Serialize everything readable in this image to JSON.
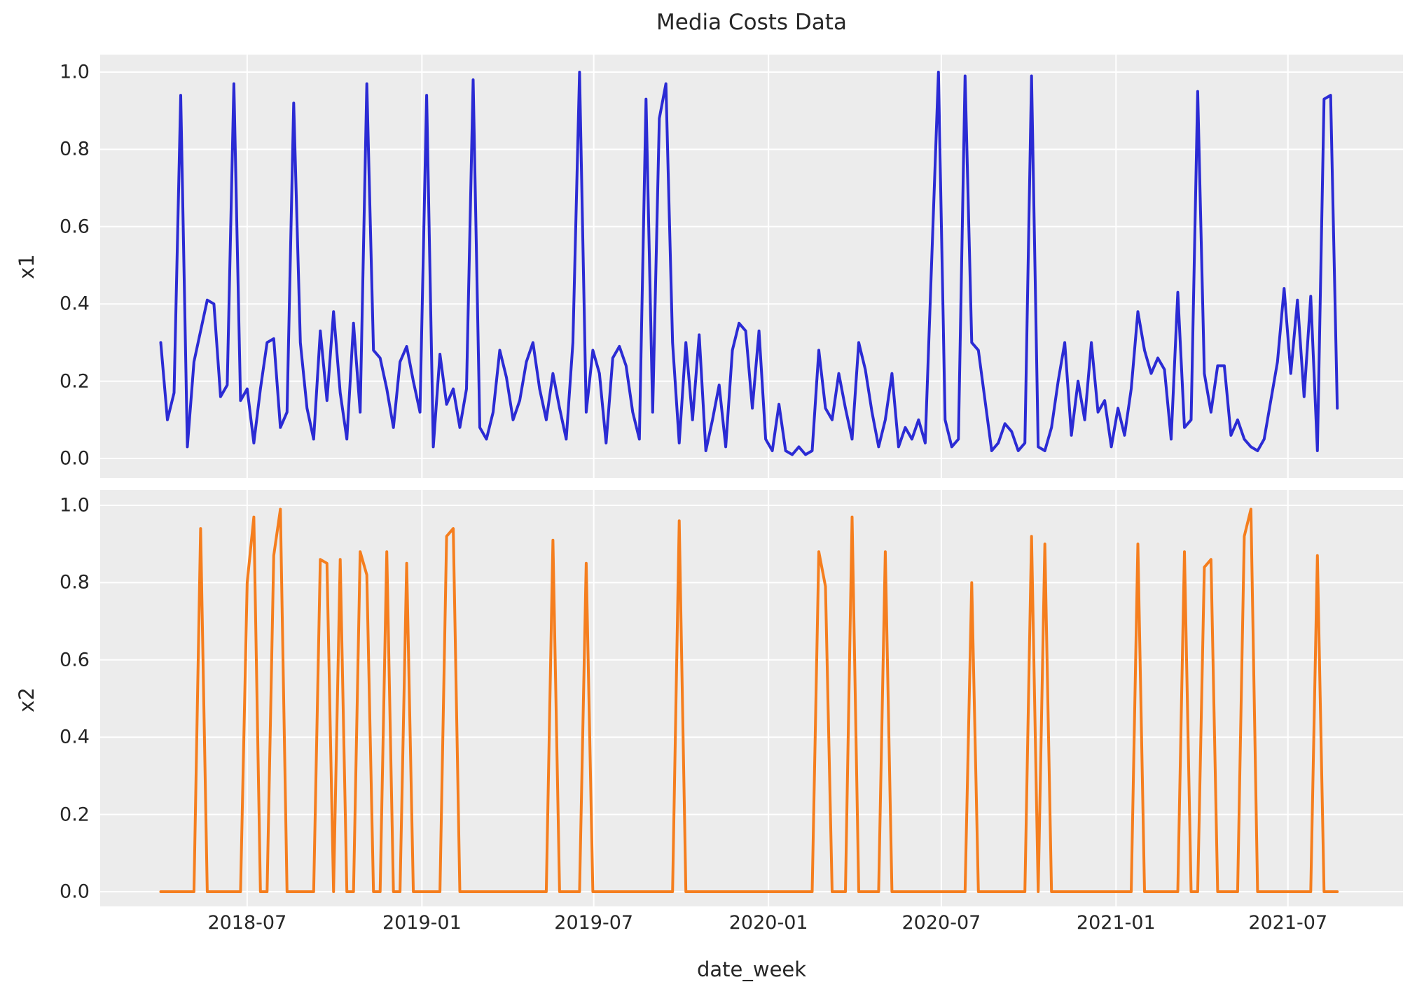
{
  "title": "Media Costs Data",
  "xlabel": "date_week",
  "subplots": [
    {
      "ylabel": "x1"
    },
    {
      "ylabel": "x2"
    }
  ],
  "y_ticks": [
    "1.0",
    "0.8",
    "0.6",
    "0.4",
    "0.2",
    "0.0"
  ],
  "x_ticks": [
    {
      "label": "2018-07",
      "index": 13.0
    },
    {
      "label": "2019-01",
      "index": 39.29
    },
    {
      "label": "2019-07",
      "index": 65.14
    },
    {
      "label": "2020-01",
      "index": 91.43
    },
    {
      "label": "2020-07",
      "index": 117.43
    },
    {
      "label": "2021-01",
      "index": 143.71
    },
    {
      "label": "2021-07",
      "index": 169.57
    }
  ],
  "colors": {
    "x1_line": "#2b2bd4",
    "x2_line": "#f57e1e",
    "plot_background": "#ececec",
    "gridline": "#ffffff",
    "text": "#262626"
  },
  "chart_data": {
    "type": "line",
    "title": "Media Costs Data",
    "xlabel": "date_week",
    "x_start_date": "2018-04-01",
    "x_freq": "weekly",
    "n_points": 178,
    "ylim": [
      0.0,
      1.0
    ],
    "grid": true,
    "legend": false,
    "x_tick_labels": [
      "2018-07",
      "2019-01",
      "2019-07",
      "2020-01",
      "2020-07",
      "2021-01",
      "2021-07"
    ],
    "series": [
      {
        "name": "x1",
        "color": "#2b2bd4",
        "values": [
          0.3,
          0.1,
          0.17,
          0.94,
          0.03,
          0.25,
          0.33,
          0.41,
          0.4,
          0.16,
          0.19,
          0.97,
          0.15,
          0.18,
          0.04,
          0.18,
          0.3,
          0.31,
          0.08,
          0.12,
          0.92,
          0.3,
          0.13,
          0.05,
          0.33,
          0.15,
          0.38,
          0.17,
          0.05,
          0.35,
          0.12,
          0.97,
          0.28,
          0.26,
          0.18,
          0.08,
          0.25,
          0.29,
          0.2,
          0.12,
          0.94,
          0.03,
          0.27,
          0.14,
          0.18,
          0.08,
          0.18,
          0.98,
          0.08,
          0.05,
          0.12,
          0.28,
          0.21,
          0.1,
          0.15,
          0.25,
          0.3,
          0.18,
          0.1,
          0.22,
          0.13,
          0.05,
          0.3,
          1.0,
          0.12,
          0.28,
          0.22,
          0.04,
          0.26,
          0.29,
          0.24,
          0.12,
          0.05,
          0.93,
          0.12,
          0.88,
          0.97,
          0.3,
          0.04,
          0.3,
          0.1,
          0.32,
          0.02,
          0.1,
          0.19,
          0.03,
          0.28,
          0.35,
          0.33,
          0.13,
          0.33,
          0.05,
          0.02,
          0.14,
          0.02,
          0.01,
          0.03,
          0.01,
          0.02,
          0.28,
          0.13,
          0.1,
          0.22,
          0.13,
          0.05,
          0.3,
          0.23,
          0.12,
          0.03,
          0.1,
          0.22,
          0.03,
          0.08,
          0.05,
          0.1,
          0.04,
          0.52,
          1.0,
          0.1,
          0.03,
          0.05,
          0.99,
          0.3,
          0.28,
          0.15,
          0.02,
          0.04,
          0.09,
          0.07,
          0.02,
          0.04,
          0.99,
          0.03,
          0.02,
          0.08,
          0.2,
          0.3,
          0.06,
          0.2,
          0.1,
          0.3,
          0.12,
          0.15,
          0.03,
          0.13,
          0.06,
          0.18,
          0.38,
          0.28,
          0.22,
          0.26,
          0.23,
          0.05,
          0.43,
          0.08,
          0.1,
          0.95,
          0.22,
          0.12,
          0.24,
          0.24,
          0.06,
          0.1,
          0.05,
          0.03,
          0.02,
          0.05,
          0.15,
          0.25,
          0.44,
          0.22,
          0.41,
          0.16,
          0.42,
          0.02,
          0.93,
          0.94,
          0.13
        ]
      },
      {
        "name": "x2",
        "color": "#f57e1e",
        "values": [
          0,
          0,
          0,
          0,
          0,
          0,
          0.94,
          0,
          0,
          0,
          0,
          0,
          0,
          0.8,
          0.97,
          0,
          0,
          0.87,
          0.99,
          0,
          0,
          0,
          0,
          0,
          0.86,
          0.85,
          0,
          0.86,
          0,
          0,
          0.88,
          0.82,
          0,
          0,
          0.88,
          0,
          0,
          0.85,
          0,
          0,
          0,
          0,
          0,
          0.92,
          0.94,
          0,
          0,
          0,
          0,
          0,
          0,
          0,
          0,
          0,
          0,
          0,
          0,
          0,
          0,
          0.91,
          0,
          0,
          0,
          0,
          0.85,
          0,
          0,
          0,
          0,
          0,
          0,
          0,
          0,
          0,
          0,
          0,
          0,
          0,
          0.96,
          0,
          0,
          0,
          0,
          0,
          0,
          0,
          0,
          0,
          0,
          0,
          0,
          0,
          0,
          0,
          0,
          0,
          0,
          0,
          0,
          0.88,
          0.79,
          0,
          0,
          0,
          0.97,
          0,
          0,
          0,
          0,
          0.88,
          0,
          0,
          0,
          0,
          0,
          0,
          0,
          0,
          0,
          0,
          0,
          0,
          0.8,
          0,
          0,
          0,
          0,
          0,
          0,
          0,
          0,
          0.92,
          0,
          0.9,
          0,
          0,
          0,
          0,
          0,
          0,
          0,
          0,
          0,
          0,
          0,
          0,
          0,
          0.9,
          0,
          0,
          0,
          0,
          0,
          0,
          0.88,
          0,
          0,
          0.84,
          0.86,
          0,
          0,
          0,
          0,
          0.92,
          0.99,
          0,
          0,
          0,
          0,
          0,
          0,
          0,
          0,
          0,
          0.87,
          0,
          0,
          0
        ]
      }
    ]
  }
}
